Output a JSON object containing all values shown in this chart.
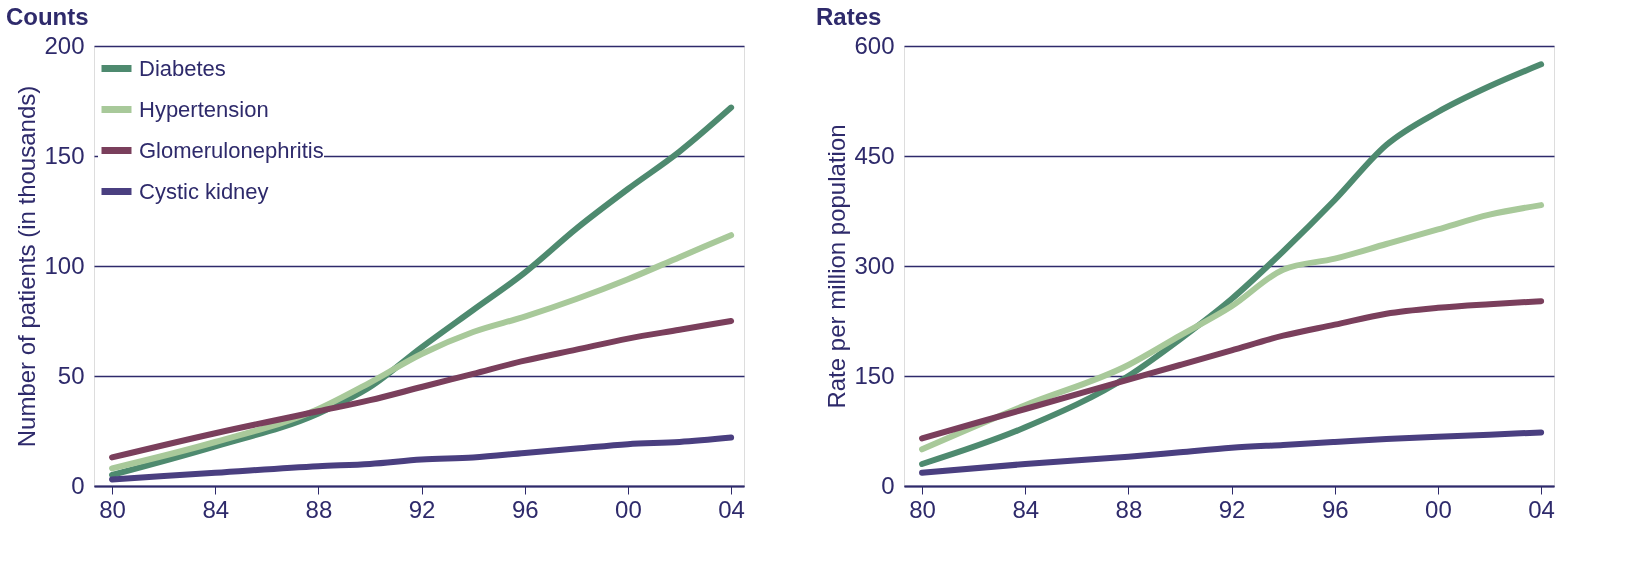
{
  "chart_data": [
    {
      "type": "line",
      "title": "Counts",
      "ylabel": "Number of patients (in thousands)",
      "x": [
        1980,
        1984,
        1988,
        1990,
        1992,
        1994,
        1996,
        1998,
        2000,
        2002,
        2004
      ],
      "series": [
        {
          "name": "Diabetes",
          "color": "#4e8a6f",
          "values": [
            5,
            18,
            33,
            45,
            63,
            80,
            97,
            117,
            135,
            152,
            172
          ]
        },
        {
          "name": "Hypertension",
          "color": "#a8c99a",
          "values": [
            8,
            20,
            35,
            47,
            60,
            70,
            77,
            85,
            94,
            104,
            114
          ]
        },
        {
          "name": "Glomerulonephritis",
          "color": "#7a3f5c",
          "values": [
            13,
            24,
            34,
            39,
            45,
            51,
            57,
            62,
            67,
            71,
            75
          ]
        },
        {
          "name": "Cystic kidney",
          "color": "#4a3f80",
          "values": [
            3,
            6,
            9,
            10,
            12,
            13,
            15,
            17,
            19,
            20,
            22
          ]
        }
      ],
      "xlim": [
        1979.3,
        2004.5
      ],
      "xticks": [
        {
          "value": 1980,
          "label": "80"
        },
        {
          "value": 1984,
          "label": "84"
        },
        {
          "value": 1988,
          "label": "88"
        },
        {
          "value": 1992,
          "label": "92"
        },
        {
          "value": 1996,
          "label": "96"
        },
        {
          "value": 2000,
          "label": "00"
        },
        {
          "value": 2004,
          "label": "04"
        }
      ],
      "ylim": [
        0,
        200
      ],
      "yticks": [
        0,
        50,
        100,
        150,
        200
      ],
      "grid": "y",
      "legend": "top left",
      "marker": "none",
      "line_style": "solid"
    },
    {
      "type": "line",
      "title": "Rates",
      "ylabel": "Rate per million population",
      "x": [
        1980,
        1984,
        1988,
        1990,
        1992,
        1994,
        1996,
        1998,
        2000,
        2002,
        2004
      ],
      "series": [
        {
          "color": "#4e8a6f",
          "values": [
            30,
            80,
            150,
            200,
            255,
            320,
            390,
            465,
            510,
            545,
            575
          ]
        },
        {
          "color": "#a8c99a",
          "values": [
            50,
            110,
            165,
            205,
            245,
            295,
            310,
            330,
            350,
            370,
            383
          ]
        },
        {
          "color": "#7a3f5c",
          "values": [
            65,
            105,
            145,
            165,
            185,
            205,
            220,
            235,
            243,
            248,
            252
          ]
        },
        {
          "color": "#4a3f80",
          "values": [
            18,
            30,
            40,
            46,
            52,
            56,
            60,
            64,
            67,
            70,
            73
          ]
        }
      ],
      "xlim": [
        1979.3,
        2004.5
      ],
      "xticks": [
        {
          "value": 1980,
          "label": "80"
        },
        {
          "value": 1984,
          "label": "84"
        },
        {
          "value": 1988,
          "label": "88"
        },
        {
          "value": 1992,
          "label": "92"
        },
        {
          "value": 1996,
          "label": "96"
        },
        {
          "value": 2000,
          "label": "00"
        },
        {
          "value": 2004,
          "label": "04"
        }
      ],
      "ylim": [
        0,
        600
      ],
      "yticks": [
        0,
        150,
        300,
        450,
        600
      ],
      "grid": "y",
      "legend": false,
      "marker": "none",
      "line_style": "solid"
    }
  ]
}
